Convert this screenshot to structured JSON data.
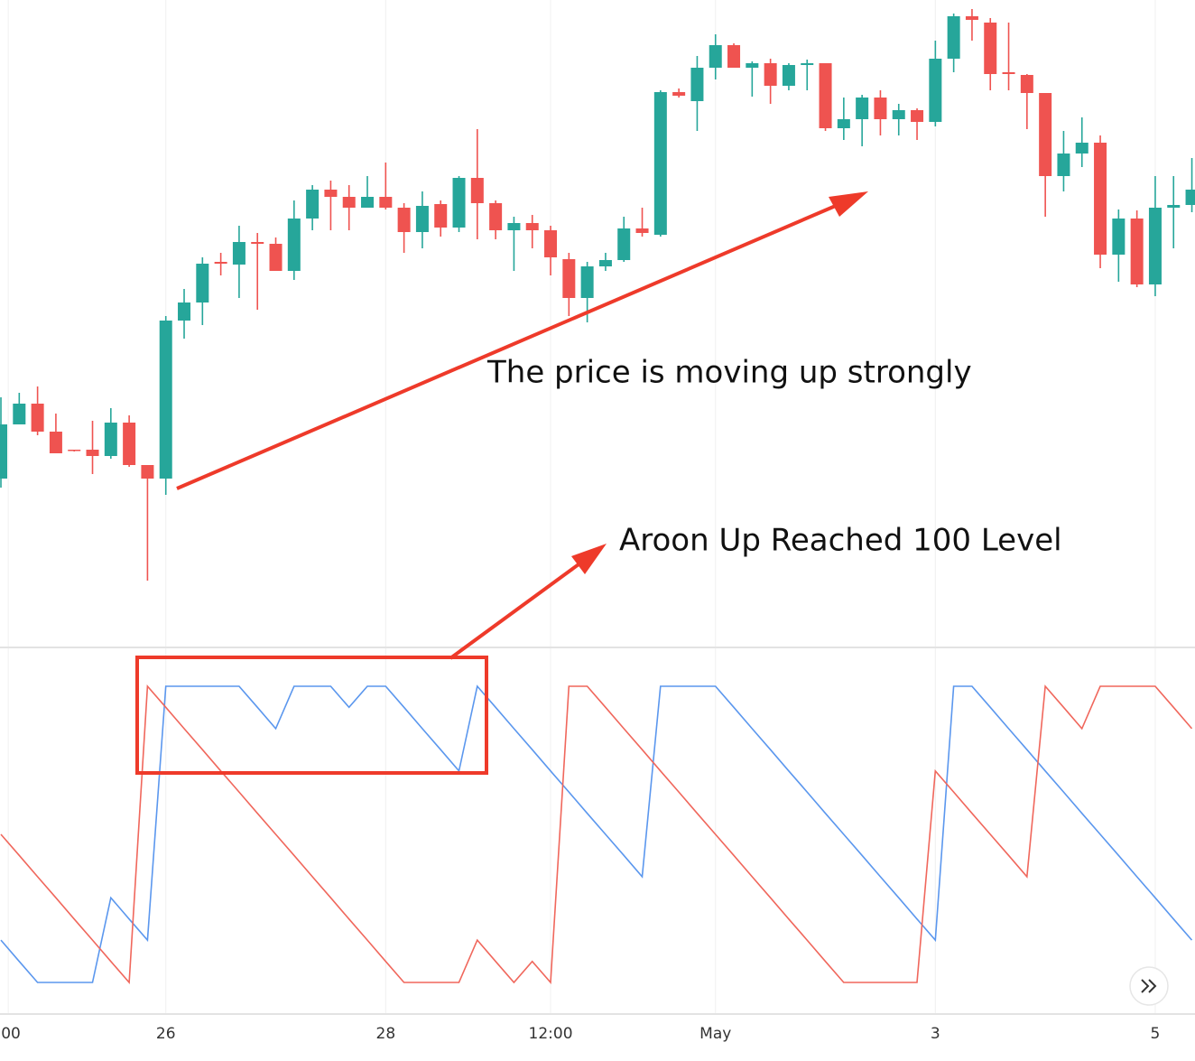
{
  "chart_data": [
    {
      "type": "candlestick",
      "annotations": [
        "The price is moving up strongly"
      ],
      "up_color": "#26a69a",
      "down_color": "#ef5350",
      "xlim": [
        -0.05,
        65.17
      ],
      "ylim": [
        0,
        715
      ],
      "open": [
        185,
        245,
        268,
        237,
        217,
        217,
        210,
        247,
        200,
        185,
        360,
        380,
        425,
        422,
        447,
        445,
        415,
        473,
        505,
        497,
        485,
        497,
        485,
        458,
        489,
        463,
        518,
        490,
        460,
        468,
        460,
        428,
        385,
        420,
        427,
        462,
        455,
        613,
        603,
        640,
        665,
        640,
        645,
        620,
        643,
        645,
        573,
        583,
        607,
        583,
        593,
        580,
        650,
        697,
        690,
        635,
        632,
        612,
        520,
        545,
        557,
        433,
        473,
        400,
        485,
        488
      ],
      "high": [
        275,
        280,
        287,
        257,
        217,
        249,
        263,
        255,
        200,
        365,
        395,
        430,
        435,
        465,
        457,
        452,
        493,
        510,
        515,
        510,
        520,
        535,
        490,
        503,
        493,
        520,
        572,
        493,
        475,
        477,
        465,
        435,
        425,
        435,
        475,
        485,
        615,
        617,
        653,
        677,
        667,
        647,
        650,
        645,
        649,
        645,
        607,
        610,
        615,
        600,
        595,
        670,
        700,
        705,
        695,
        690,
        633,
        612,
        570,
        585,
        565,
        483,
        482,
        520,
        520,
        540
      ],
      "low": [
        175,
        245,
        233,
        213,
        215,
        190,
        207,
        198,
        72,
        167,
        340,
        355,
        410,
        385,
        372,
        415,
        405,
        460,
        460,
        460,
        485,
        483,
        435,
        440,
        453,
        458,
        450,
        450,
        415,
        440,
        410,
        365,
        358,
        415,
        425,
        453,
        453,
        607,
        570,
        627,
        640,
        608,
        600,
        615,
        615,
        570,
        560,
        553,
        565,
        565,
        560,
        575,
        635,
        670,
        615,
        615,
        572,
        475,
        503,
        530,
        418,
        403,
        397,
        387,
        440,
        480
      ],
      "close": [
        245,
        268,
        237,
        213,
        216,
        210,
        247,
        200,
        185,
        360,
        380,
        423,
        423,
        447,
        445,
        415,
        473,
        505,
        497,
        485,
        497,
        485,
        458,
        487,
        463,
        518,
        490,
        460,
        468,
        460,
        430,
        385,
        420,
        427,
        462,
        457,
        613,
        609,
        640,
        665,
        640,
        645,
        620,
        643,
        645,
        573,
        583,
        607,
        583,
        593,
        580,
        650,
        697,
        693,
        633,
        633,
        612,
        520,
        545,
        557,
        433,
        473,
        400,
        485,
        488,
        505
      ]
    },
    {
      "type": "line",
      "annotations": [
        "Aroon Up Reached 100 Level"
      ],
      "xlim": [
        -0.05,
        65.17
      ],
      "ylim": [
        0,
        100
      ],
      "xticks": [
        {
          "value": 0.4,
          "label": ":00"
        },
        {
          "value": 9,
          "label": "26"
        },
        {
          "value": 21,
          "label": "28"
        },
        {
          "value": 30,
          "label": "12:00"
        },
        {
          "value": 39,
          "label": "May"
        },
        {
          "value": 51,
          "label": "3"
        },
        {
          "value": 63,
          "label": "5"
        }
      ],
      "series": [
        {
          "color": "#5b97ee",
          "values": [
            14.3,
            7.1,
            0,
            0,
            0,
            0,
            28.6,
            21.4,
            14.3,
            100,
            100,
            100,
            100,
            100,
            92.9,
            85.7,
            100,
            100,
            100,
            92.9,
            100,
            100,
            92.9,
            85.7,
            78.6,
            71.4,
            100,
            92.9,
            85.7,
            78.6,
            71.4,
            64.3,
            57.1,
            50,
            42.9,
            35.7,
            100,
            100,
            100,
            100,
            92.9,
            85.7,
            78.6,
            71.4,
            64.3,
            57.1,
            50,
            42.9,
            35.7,
            28.6,
            21.4,
            14.3,
            100,
            100,
            92.9,
            85.7,
            78.6,
            71.4,
            64.3,
            57.1,
            50,
            42.9,
            35.7,
            28.6,
            21.4,
            14.3
          ]
        },
        {
          "color": "#f0675c",
          "values": [
            50,
            42.9,
            35.7,
            28.6,
            21.4,
            14.3,
            7.1,
            0,
            100,
            92.9,
            85.7,
            78.6,
            71.4,
            64.3,
            57.1,
            50,
            42.9,
            35.7,
            28.6,
            21.4,
            14.3,
            7.1,
            0,
            0,
            0,
            0,
            14.3,
            7.1,
            0,
            7.1,
            0,
            100,
            100,
            92.9,
            85.7,
            78.6,
            71.4,
            64.3,
            57.1,
            50,
            42.9,
            35.7,
            28.6,
            21.4,
            14.3,
            7.1,
            0,
            0,
            0,
            0,
            0,
            71.4,
            64.3,
            57.1,
            50,
            42.9,
            35.7,
            100,
            92.9,
            85.7,
            100,
            100,
            100,
            100,
            92.9,
            85.7
          ]
        }
      ]
    }
  ]
}
